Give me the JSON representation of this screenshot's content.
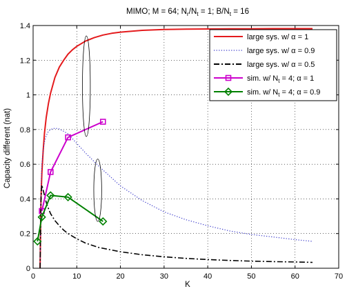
{
  "chart_data": {
    "type": "line",
    "title": "MIMO; M = 64; N_r/N_t = 1; B/N_t = 16",
    "title_parts": {
      "p1": "MIMO; M = 64; N",
      "s1": "r",
      "p2": "/N",
      "s2": "t",
      "p3": " = 1; B/N",
      "s3": "t",
      "p4": " = 16"
    },
    "xlabel": "K",
    "ylabel": "Capacity different (nat)",
    "xlim": [
      0,
      70
    ],
    "ylim": [
      0,
      1.4
    ],
    "xticks": [
      "0",
      "10",
      "20",
      "30",
      "40",
      "50",
      "60",
      "70"
    ],
    "yticks": [
      "0",
      "0.2",
      "0.4",
      "0.6",
      "0.8",
      "1",
      "1.2",
      "1.4"
    ],
    "grid": true,
    "legend_position": "top-right",
    "legend": [
      {
        "text": "large sys. w/ α = 1",
        "color": "#e41a1c",
        "style": "solid"
      },
      {
        "text": "large sys. w/ α = 0.9",
        "color": "#3030c8",
        "style": "dotted"
      },
      {
        "text": "large sys. w/ α = 0.5",
        "color": "#000000",
        "style": "dashdot"
      },
      {
        "p1": "sim. w/ N",
        "sub": "t",
        "p2": " = 4; α = 1",
        "color": "#cc00cc",
        "style": "solid",
        "marker": "square"
      },
      {
        "p1": "sim. w/ N",
        "sub": "t",
        "p2": " = 4; α = 0.9",
        "color": "#008000",
        "style": "solid",
        "marker": "diamond"
      }
    ],
    "series": [
      {
        "name": "large sys. w/ α = 1",
        "color": "#e41a1c",
        "style": "solid",
        "width": 2,
        "x": [
          1.6,
          1.8,
          2,
          2.3,
          2.6,
          3,
          3.5,
          4,
          5,
          6,
          7,
          8,
          9,
          10,
          12,
          14,
          16,
          18,
          20,
          25,
          30,
          35,
          40,
          45,
          50,
          55,
          60,
          64
        ],
        "y": [
          0.0,
          0.4,
          0.55,
          0.68,
          0.78,
          0.87,
          0.95,
          1.01,
          1.1,
          1.16,
          1.2,
          1.235,
          1.26,
          1.28,
          1.31,
          1.33,
          1.345,
          1.355,
          1.362,
          1.372,
          1.377,
          1.379,
          1.38,
          1.381,
          1.381,
          1.382,
          1.382,
          1.382
        ]
      },
      {
        "name": "large sys. w/ α = 0.9",
        "color": "#3030c8",
        "style": "dotted",
        "width": 1.2,
        "x": [
          1.6,
          1.8,
          2,
          2.3,
          2.6,
          3,
          3.5,
          4,
          4.5,
          5,
          5.5,
          6,
          7,
          8,
          10,
          12,
          15,
          20,
          25,
          30,
          35,
          40,
          45,
          50,
          55,
          60,
          64
        ],
        "y": [
          0.0,
          0.45,
          0.6,
          0.68,
          0.73,
          0.765,
          0.79,
          0.8,
          0.805,
          0.807,
          0.806,
          0.803,
          0.79,
          0.775,
          0.72,
          0.665,
          0.59,
          0.475,
          0.39,
          0.325,
          0.28,
          0.245,
          0.215,
          0.195,
          0.18,
          0.165,
          0.155
        ]
      },
      {
        "name": "large sys. w/ α = 0.5",
        "color": "#000000",
        "style": "dashdot",
        "width": 1.6,
        "x": [
          1.6,
          1.8,
          2,
          2.3,
          2.6,
          3,
          3.5,
          4,
          5,
          6,
          7,
          8,
          10,
          12,
          15,
          20,
          25,
          30,
          35,
          40,
          45,
          50,
          55,
          60,
          64
        ],
        "y": [
          0.0,
          0.4,
          0.48,
          0.45,
          0.42,
          0.38,
          0.345,
          0.315,
          0.275,
          0.245,
          0.22,
          0.2,
          0.17,
          0.145,
          0.12,
          0.095,
          0.078,
          0.066,
          0.057,
          0.05,
          0.045,
          0.041,
          0.038,
          0.036,
          0.034
        ]
      },
      {
        "name": "sim. w/ N_t = 4; α = 1",
        "color": "#cc00cc",
        "style": "solid",
        "width": 2,
        "marker": "square",
        "x": [
          2,
          4,
          8,
          16
        ],
        "y": [
          0.33,
          0.555,
          0.755,
          0.845
        ]
      },
      {
        "name": "sim. w/ N_t = 4; α = 0.9",
        "color": "#008000",
        "style": "solid",
        "width": 2,
        "marker": "diamond",
        "x": [
          1,
          2,
          4,
          8,
          16
        ],
        "y": [
          0.155,
          0.295,
          0.42,
          0.41,
          0.27
        ]
      }
    ],
    "annotations": [
      {
        "type": "ellipse",
        "cx": 12.2,
        "cy": 1.05,
        "rx": 0.9,
        "ry": 0.29
      },
      {
        "type": "ellipse",
        "cx": 14.8,
        "cy": 0.45,
        "rx": 0.9,
        "ry": 0.18
      }
    ]
  }
}
